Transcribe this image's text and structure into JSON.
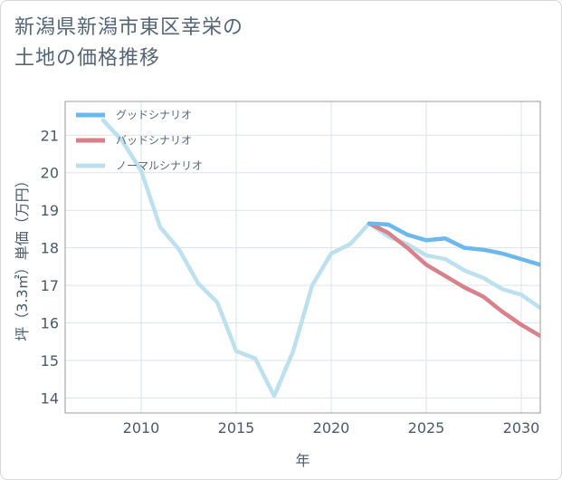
{
  "title": {
    "line1": "新潟県新潟市東区幸栄の",
    "line2": "土地の価格推移"
  },
  "colors": {
    "good": "#6bb8ec",
    "bad": "#d9808a",
    "normal": "#bde0ee",
    "grid": "#dde3ea",
    "axis": "#999999"
  },
  "chart_data": {
    "type": "line",
    "title": "新潟県新潟市東区幸栄の土地の価格推移",
    "xlabel": "年",
    "ylabel": "坪（3.3㎡）単価（万円）",
    "xlim": [
      2006,
      2031
    ],
    "ylim": [
      13.6,
      21.9
    ],
    "x_ticks": [
      2010,
      2015,
      2020,
      2025,
      2030
    ],
    "y_ticks": [
      14,
      15,
      16,
      17,
      18,
      19,
      20,
      21
    ],
    "grid": true,
    "legend_position": "top-left",
    "series": [
      {
        "name": "グッドシナリオ",
        "color": "#6bb8ec",
        "x": [
          2022,
          2023,
          2024,
          2025,
          2026,
          2027,
          2028,
          2029,
          2030,
          2031
        ],
        "values": [
          18.65,
          18.62,
          18.35,
          18.2,
          18.25,
          18.0,
          17.95,
          17.85,
          17.7,
          17.55
        ]
      },
      {
        "name": "バッドシナリオ",
        "color": "#d9808a",
        "x": [
          2022,
          2023,
          2024,
          2025,
          2026,
          2027,
          2028,
          2029,
          2030,
          2031
        ],
        "values": [
          18.65,
          18.4,
          18.0,
          17.55,
          17.25,
          16.95,
          16.7,
          16.3,
          15.95,
          15.65
        ]
      },
      {
        "name": "ノーマルシナリオ",
        "color": "#bde0ee",
        "x": [
          2008,
          2009,
          2010,
          2011,
          2012,
          2013,
          2014,
          2015,
          2016,
          2017,
          2018,
          2019,
          2020,
          2021,
          2022,
          2023,
          2024,
          2025,
          2026,
          2027,
          2028,
          2029,
          2030,
          2031
        ],
        "values": [
          21.4,
          20.85,
          20.05,
          18.55,
          17.95,
          17.05,
          16.55,
          15.25,
          15.05,
          14.05,
          15.25,
          17.0,
          17.85,
          18.1,
          18.65,
          18.3,
          18.1,
          17.8,
          17.7,
          17.4,
          17.2,
          16.9,
          16.75,
          16.4
        ]
      }
    ]
  }
}
